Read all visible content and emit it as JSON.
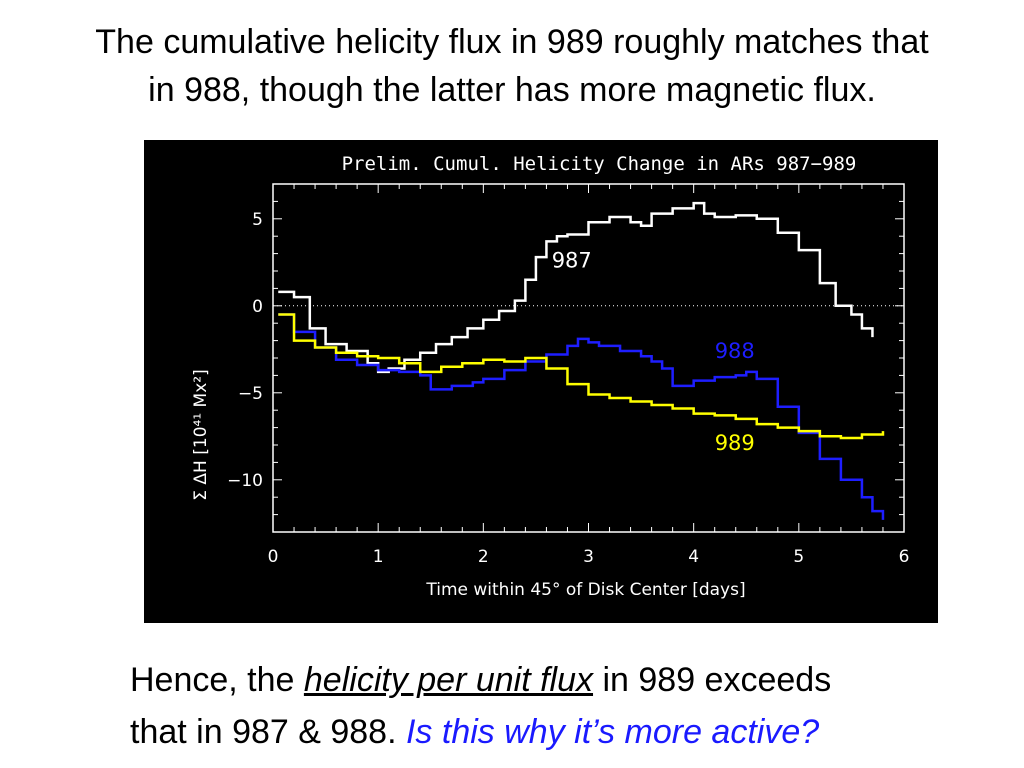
{
  "slide": {
    "title_line1": "The cumulative helicity flux in 989 roughly matches that",
    "title_line2": "in 988, though the latter has more magnetic flux.",
    "caption_pre": "Hence, the ",
    "caption_emph": "helicity per unit flux",
    "caption_mid": " in 989 exceeds",
    "caption_line2": "that in 987 & 988. ",
    "caption_question": "Is this why it’s more active?"
  },
  "chart_data": {
    "type": "line",
    "title": "Prelim. Cumul. Helicity Change in ARs 987−989",
    "xlabel": "Time within 45° of Disk Center [days]",
    "ylabel": "Σ ΔH [10⁴¹ Mx²]",
    "xlim": [
      0,
      6
    ],
    "ylim": [
      -13,
      7
    ],
    "xticks": [
      0,
      1,
      2,
      3,
      4,
      5,
      6
    ],
    "yticks": [
      5,
      0,
      -5,
      -10
    ],
    "background": "#000000",
    "axis_color": "#ffffff",
    "zero_line": "dotted",
    "series": [
      {
        "name": "987",
        "color": "#ffffff",
        "x": [
          0.05,
          0.2,
          0.35,
          0.5,
          0.7,
          0.9,
          1.0,
          1.1,
          1.25,
          1.4,
          1.55,
          1.7,
          1.85,
          2.0,
          2.15,
          2.3,
          2.4,
          2.5,
          2.6,
          2.7,
          2.8,
          3.0,
          3.2,
          3.4,
          3.5,
          3.6,
          3.8,
          4.0,
          4.1,
          4.2,
          4.4,
          4.6,
          4.8,
          5.0,
          5.2,
          5.35,
          5.5,
          5.6,
          5.7
        ],
        "y": [
          0.8,
          0.5,
          -1.3,
          -2.2,
          -2.6,
          -3.3,
          -3.8,
          -3.6,
          -3.1,
          -2.7,
          -2.2,
          -1.8,
          -1.3,
          -0.8,
          -0.3,
          0.3,
          1.5,
          2.8,
          3.7,
          4.0,
          4.1,
          4.8,
          5.1,
          4.8,
          4.6,
          5.3,
          5.6,
          5.9,
          5.3,
          5.1,
          5.2,
          5.0,
          4.2,
          3.2,
          1.3,
          0.0,
          -0.5,
          -1.3,
          -1.8
        ]
      },
      {
        "name": "988",
        "color": "#1e1eff",
        "x": [
          0.05,
          0.2,
          0.4,
          0.6,
          0.8,
          1.0,
          1.2,
          1.4,
          1.5,
          1.7,
          1.9,
          2.0,
          2.2,
          2.4,
          2.6,
          2.8,
          2.9,
          3.0,
          3.1,
          3.3,
          3.5,
          3.6,
          3.7,
          3.8,
          4.0,
          4.2,
          4.4,
          4.5,
          4.6,
          4.8,
          5.0,
          5.2,
          5.4,
          5.6,
          5.7,
          5.8
        ],
        "y": [
          -0.5,
          -1.5,
          -2.4,
          -3.1,
          -3.4,
          -3.7,
          -3.8,
          -4.0,
          -4.8,
          -4.6,
          -4.4,
          -4.2,
          -3.7,
          -3.2,
          -2.8,
          -2.3,
          -1.9,
          -2.1,
          -2.3,
          -2.6,
          -2.9,
          -3.2,
          -3.6,
          -4.6,
          -4.3,
          -4.1,
          -4.0,
          -3.8,
          -4.2,
          -5.8,
          -7.3,
          -8.8,
          -10.0,
          -11.0,
          -11.8,
          -12.3
        ]
      },
      {
        "name": "989",
        "color": "#ffff00",
        "x": [
          0.05,
          0.2,
          0.4,
          0.6,
          0.8,
          1.0,
          1.2,
          1.4,
          1.6,
          1.8,
          2.0,
          2.2,
          2.4,
          2.6,
          2.8,
          3.0,
          3.2,
          3.4,
          3.6,
          3.8,
          4.0,
          4.2,
          4.4,
          4.6,
          4.8,
          5.0,
          5.2,
          5.4,
          5.6,
          5.8
        ],
        "y": [
          -0.5,
          -2.0,
          -2.4,
          -2.7,
          -2.9,
          -3.0,
          -3.3,
          -3.8,
          -3.5,
          -3.3,
          -3.1,
          -3.2,
          -3.0,
          -3.6,
          -4.5,
          -5.1,
          -5.3,
          -5.5,
          -5.7,
          -5.9,
          -6.2,
          -6.3,
          -6.5,
          -6.8,
          -7.0,
          -7.2,
          -7.5,
          -7.6,
          -7.4,
          -7.2
        ]
      }
    ]
  }
}
